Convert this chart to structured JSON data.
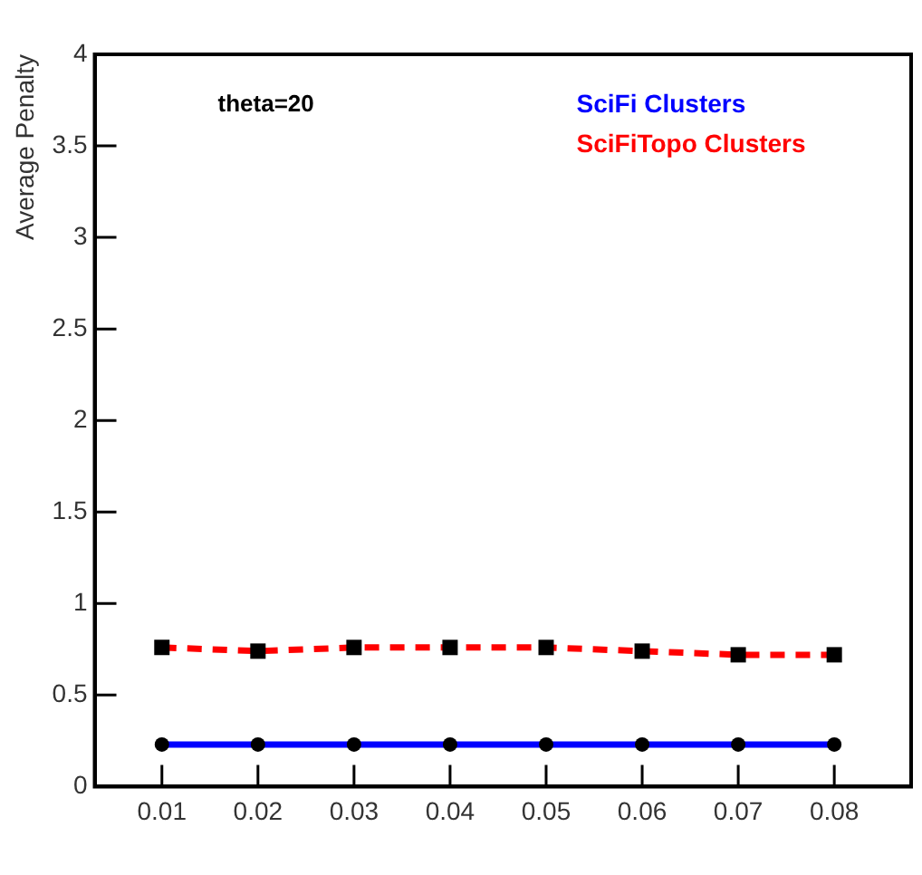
{
  "chart_data": {
    "type": "line",
    "ylabel": "Average Penalty",
    "x": [
      0.01,
      0.02,
      0.03,
      0.04,
      0.05,
      0.06,
      0.07,
      0.08
    ],
    "series": [
      {
        "name": "SciFi Clusters",
        "color": "#0000ff",
        "marker": "circle",
        "line_style": "solid",
        "values": [
          0.23,
          0.23,
          0.23,
          0.23,
          0.23,
          0.23,
          0.23,
          0.23
        ]
      },
      {
        "name": "SciFiTopo Clusters",
        "color": "#ff0000",
        "marker": "square",
        "line_style": "dashed",
        "values": [
          0.76,
          0.74,
          0.76,
          0.76,
          0.76,
          0.74,
          0.72,
          0.72
        ]
      }
    ],
    "xlim": [
      0.003,
      0.088
    ],
    "xticks": [
      {
        "value": 0.01,
        "label": "0.01"
      },
      {
        "value": 0.02,
        "label": "0.02"
      },
      {
        "value": 0.03,
        "label": "0.03"
      },
      {
        "value": 0.04,
        "label": "0.04"
      },
      {
        "value": 0.05,
        "label": "0.05"
      },
      {
        "value": 0.06,
        "label": "0.06"
      },
      {
        "value": 0.07,
        "label": "0.07"
      },
      {
        "value": 0.08,
        "label": "0.08"
      }
    ],
    "ylim": [
      0,
      4
    ],
    "yticks": [
      0,
      0.5,
      1,
      1.5,
      2,
      2.5,
      3,
      3.5,
      4
    ],
    "annotations": [
      "theta=20"
    ],
    "legend": "top right",
    "grid": false
  }
}
